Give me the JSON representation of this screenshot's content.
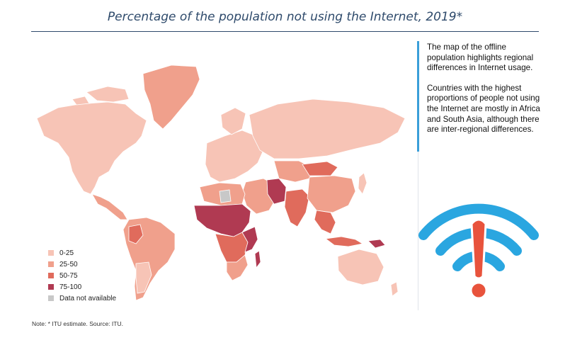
{
  "title": "Percentage of the population not using the Internet, 2019*",
  "side_text": {
    "p1": "The map of the offline population highlights regional differences in Internet usage.",
    "p2": "Countries with the highest proportions of people not using the Internet are mostly in Africa and South Asia, although there are inter-regional differences."
  },
  "legend": [
    {
      "label": "0-25",
      "color": "#f7c4b6"
    },
    {
      "label": "25-50",
      "color": "#f0a08c"
    },
    {
      "label": "50-75",
      "color": "#e06b5c"
    },
    {
      "label": "75-100",
      "color": "#b03a52"
    },
    {
      "label": "Data not available",
      "color": "#c8c8c8"
    }
  ],
  "note": "Note: * ITU estimate.   Source: ITU.",
  "colors": {
    "title": "#2e4a6b",
    "wifi_arc": "#2aa6e0",
    "wifi_alert": "#e8533c"
  },
  "icons": {
    "wifi": "wifi-alert-icon"
  }
}
